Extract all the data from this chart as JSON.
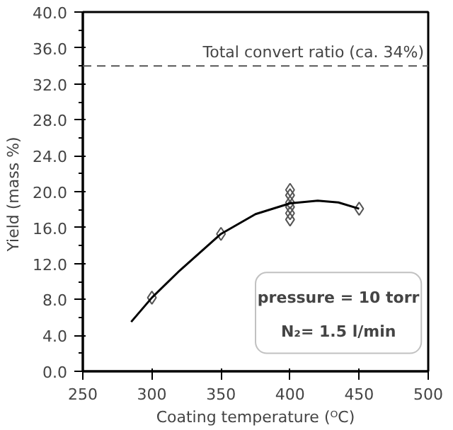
{
  "chart_data": {
    "type": "scatter",
    "xlabel": "Coating temperature (ᴼC)",
    "ylabel": "Yield  (mass %)",
    "series": [
      {
        "color": "#555555",
        "marker": "diamond",
        "x": [
          300,
          350,
          400,
          400,
          400,
          400,
          400,
          400,
          450
        ],
        "values": [
          8.2,
          15.3,
          20.2,
          19.6,
          18.8,
          18.3,
          17.6,
          16.9,
          18.1
        ]
      },
      {
        "type": "line",
        "color": "#000000",
        "marker": "none",
        "line_style": "solid",
        "x": [
          285,
          300,
          320,
          350,
          375,
          400,
          420,
          435,
          450
        ],
        "values": [
          5.5,
          8.2,
          11.2,
          15.3,
          17.5,
          18.7,
          19.0,
          18.8,
          18.1
        ]
      }
    ],
    "xlim": [
      250,
      500
    ],
    "xticks": [
      250,
      300,
      350,
      400,
      450,
      500
    ],
    "ylim": [
      0,
      40
    ],
    "yticks": [
      {
        "value": 0,
        "label": "0.0"
      },
      {
        "value": 4,
        "label": "4.0"
      },
      {
        "value": 8,
        "label": "8.0"
      },
      {
        "value": 12,
        "label": "12.0"
      },
      {
        "value": 16,
        "label": "16.0"
      },
      {
        "value": 20,
        "label": "20.0"
      },
      {
        "value": 24,
        "label": "24.0"
      },
      {
        "value": 28,
        "label": "28.0"
      },
      {
        "value": 32,
        "label": "32.0"
      },
      {
        "value": 36,
        "label": "36.0"
      },
      {
        "value": 40,
        "label": "40.0"
      }
    ],
    "ref_lines": [
      {
        "axis": "y",
        "value": 34,
        "label": "Total convert ratio (ca. 34%)",
        "color": "#555555",
        "line_style": "dashed"
      }
    ],
    "annotations": [
      "pressure = 10 torr",
      "N₂= 1.5 l/min"
    ],
    "grid": false
  }
}
